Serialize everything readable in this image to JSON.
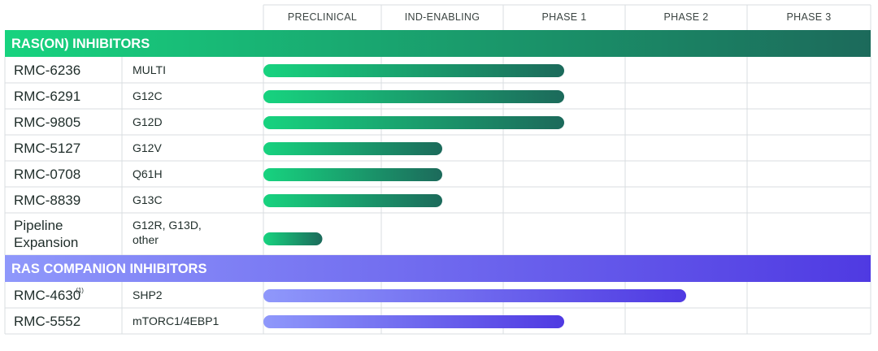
{
  "chart_data": {
    "type": "bar",
    "phases": [
      "PRECLINICAL",
      "IND-ENABLING",
      "PHASE 1",
      "PHASE 2",
      "PHASE 3"
    ],
    "sections": [
      {
        "title": "RAS(ON) INHIBITORS",
        "colors": [
          "#17d37f",
          "#1c6a5b"
        ],
        "rows": [
          {
            "name": "RMC-6236",
            "sup": "",
            "target": [
              "MULTI"
            ],
            "progress": 2.5
          },
          {
            "name": "RMC-6291",
            "sup": "",
            "target": [
              "G12C"
            ],
            "progress": 2.5
          },
          {
            "name": "RMC-9805",
            "sup": "",
            "target": [
              "G12D"
            ],
            "progress": 2.5
          },
          {
            "name": "RMC-5127",
            "sup": "",
            "target": [
              "G12V"
            ],
            "progress": 1.5
          },
          {
            "name": "RMC-0708",
            "sup": "",
            "target": [
              "Q61H"
            ],
            "progress": 1.5
          },
          {
            "name": "RMC-8839",
            "sup": "",
            "target": [
              "G13C"
            ],
            "progress": 1.5
          },
          {
            "name": [
              "Pipeline",
              "Expansion"
            ],
            "sup": "",
            "target": [
              "G12R, G13D,",
              "other"
            ],
            "progress": 0.5
          }
        ]
      },
      {
        "title": "RAS COMPANION INHIBITORS",
        "colors": [
          "#8f98fb",
          "#4f3ae2"
        ],
        "rows": [
          {
            "name": "RMC-4630",
            "sup": "(1)",
            "target": [
              "SHP2"
            ],
            "progress": 3.5
          },
          {
            "name": "RMC-5552",
            "sup": "",
            "target": [
              "mTORC1/4EBP1"
            ],
            "progress": 2.5
          }
        ]
      }
    ]
  }
}
